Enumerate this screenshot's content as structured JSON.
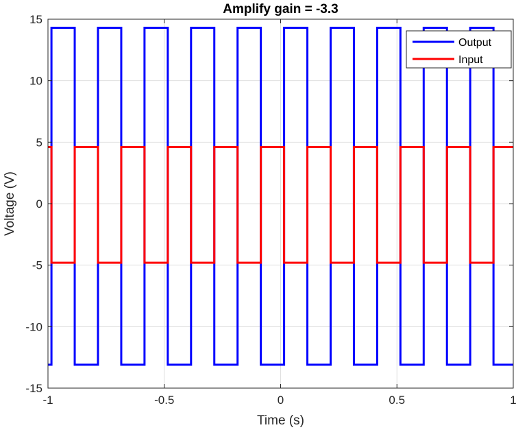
{
  "chart_data": {
    "type": "line",
    "title": "Amplify gain = -3.3",
    "xlabel": "Time (s)",
    "ylabel": "Voltage (V)",
    "xlim": [
      -1,
      1
    ],
    "ylim": [
      -15,
      15
    ],
    "xticks": [
      -1,
      -0.5,
      0,
      0.5,
      1
    ],
    "xtick_labels": [
      "-1",
      "-0.5",
      "0",
      "0.5",
      "1"
    ],
    "yticks": [
      -15,
      -10,
      -5,
      0,
      5,
      10,
      15
    ],
    "ytick_labels": [
      "-15",
      "-10",
      "-5",
      "0",
      "5",
      "10",
      "15"
    ],
    "grid": true,
    "legend_position": "top-right",
    "series": [
      {
        "name": "Output",
        "color": "#0000ff",
        "x": [
          -1,
          -0.985,
          -0.985,
          -0.885,
          -0.885,
          -0.785,
          -0.785,
          -0.685,
          -0.685,
          -0.585,
          -0.585,
          -0.485,
          -0.485,
          -0.385,
          -0.385,
          -0.285,
          -0.285,
          -0.185,
          -0.185,
          -0.085,
          -0.085,
          0.015,
          0.015,
          0.115,
          0.115,
          0.215,
          0.215,
          0.315,
          0.315,
          0.415,
          0.415,
          0.515,
          0.515,
          0.615,
          0.615,
          0.715,
          0.715,
          0.815,
          0.815,
          0.915,
          0.915,
          1
        ],
        "y": [
          -13.1,
          -13.1,
          14.3,
          14.3,
          -13.1,
          -13.1,
          14.3,
          14.3,
          -13.1,
          -13.1,
          14.3,
          14.3,
          -13.1,
          -13.1,
          14.3,
          14.3,
          -13.1,
          -13.1,
          14.3,
          14.3,
          -13.1,
          -13.1,
          14.3,
          14.3,
          -13.1,
          -13.1,
          14.3,
          14.3,
          -13.1,
          -13.1,
          14.3,
          14.3,
          -13.1,
          -13.1,
          14.3,
          14.3,
          -13.1,
          -13.1,
          14.3,
          14.3,
          -13.1,
          -13.1
        ]
      },
      {
        "name": "Input",
        "color": "#ff0000",
        "x": [
          -1,
          -0.985,
          -0.985,
          -0.885,
          -0.885,
          -0.785,
          -0.785,
          -0.685,
          -0.685,
          -0.585,
          -0.585,
          -0.485,
          -0.485,
          -0.385,
          -0.385,
          -0.285,
          -0.285,
          -0.185,
          -0.185,
          -0.085,
          -0.085,
          0.015,
          0.015,
          0.115,
          0.115,
          0.215,
          0.215,
          0.315,
          0.315,
          0.415,
          0.415,
          0.515,
          0.515,
          0.615,
          0.615,
          0.715,
          0.715,
          0.815,
          0.815,
          0.915,
          0.915,
          1
        ],
        "y": [
          4.6,
          4.6,
          -4.8,
          -4.8,
          4.6,
          4.6,
          -4.8,
          -4.8,
          4.6,
          4.6,
          -4.8,
          -4.8,
          4.6,
          4.6,
          -4.8,
          -4.8,
          4.6,
          4.6,
          -4.8,
          -4.8,
          4.6,
          4.6,
          -4.8,
          -4.8,
          4.6,
          4.6,
          -4.8,
          -4.8,
          4.6,
          4.6,
          -4.8,
          -4.8,
          4.6,
          4.6,
          -4.8,
          -4.8,
          4.6,
          4.6,
          -4.8,
          -4.8,
          4.6,
          4.6
        ]
      }
    ]
  }
}
